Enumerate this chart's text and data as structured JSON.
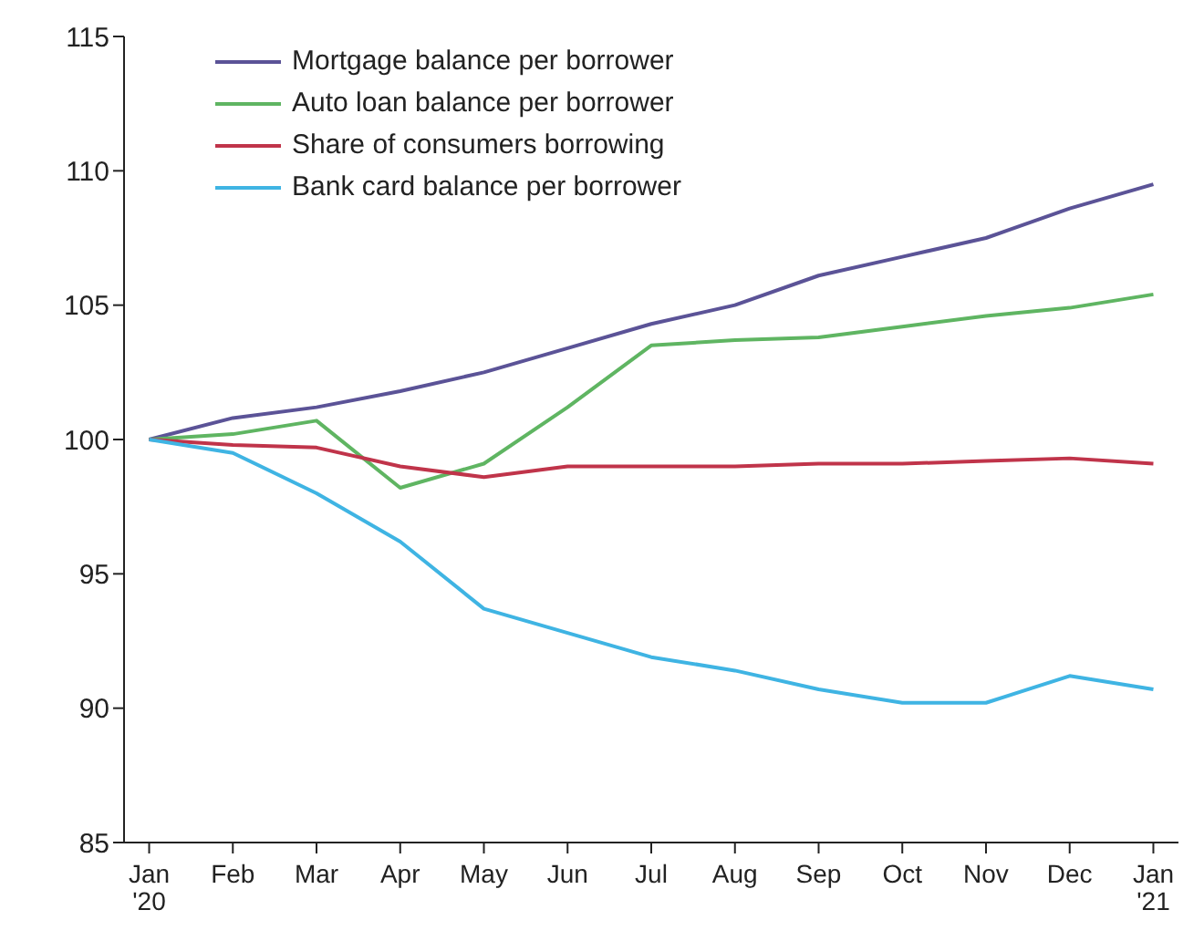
{
  "chart_data": {
    "type": "line",
    "categories": [
      "Jan '20",
      "Feb",
      "Mar",
      "Apr",
      "May",
      "Jun",
      "Jul",
      "Aug",
      "Sep",
      "Oct",
      "Nov",
      "Dec",
      "Jan '21"
    ],
    "series": [
      {
        "name": "Mortgage balance per borrower",
        "color": "#5b5397",
        "values": [
          100,
          100.8,
          101.2,
          101.8,
          102.5,
          103.4,
          104.3,
          105,
          106.1,
          106.8,
          107.5,
          108.6,
          109.5
        ]
      },
      {
        "name": "Auto loan balance per borrower",
        "color": "#5fb562",
        "values": [
          100,
          100.2,
          100.7,
          98.2,
          99.1,
          101.2,
          103.5,
          103.7,
          103.8,
          104.2,
          104.6,
          104.9,
          105.4
        ]
      },
      {
        "name": "Share of consumers borrowing",
        "color": "#c0344a",
        "values": [
          100,
          99.8,
          99.7,
          99,
          98.6,
          99,
          99,
          99,
          99.1,
          99.1,
          99.2,
          99.3,
          99.1
        ]
      },
      {
        "name": "Bank card balance per borrower",
        "color": "#3fb4e3",
        "values": [
          100,
          99.5,
          98,
          96.2,
          93.7,
          92.8,
          91.9,
          91.4,
          90.7,
          90.2,
          90.2,
          91.2,
          90.7
        ]
      }
    ],
    "ylim": [
      85,
      115
    ],
    "yticks": [
      85,
      90,
      95,
      100,
      105,
      110,
      115
    ],
    "grid": false,
    "legend": "top left",
    "marker": "none",
    "line_style": "solid"
  }
}
